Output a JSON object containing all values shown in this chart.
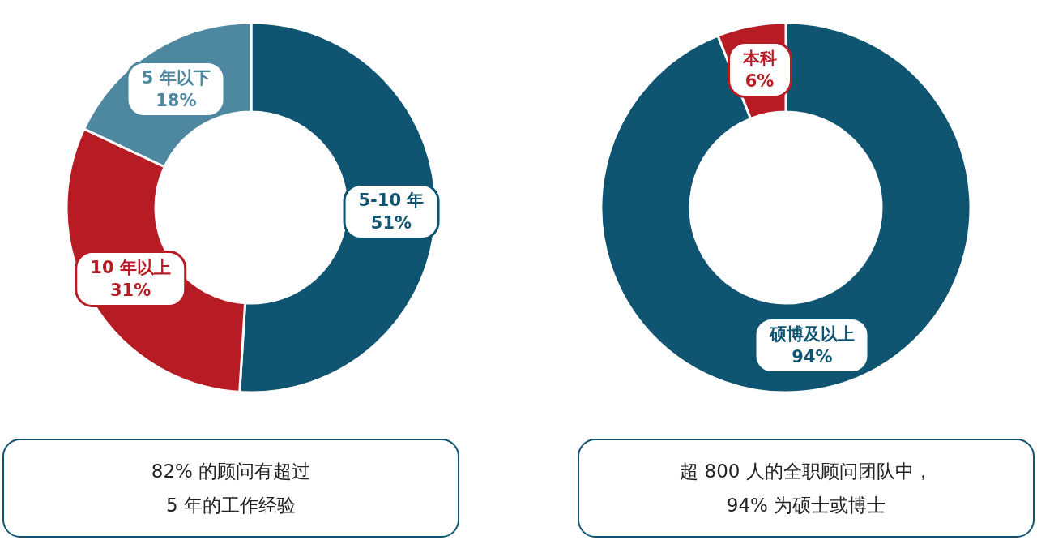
{
  "chart_data": [
    {
      "type": "donut",
      "categories": [
        "5-10 年",
        "10 年以上",
        "5 年以下"
      ],
      "values": [
        51,
        31,
        18
      ],
      "value_labels": [
        "51%",
        "31%",
        "18%"
      ],
      "colors": [
        "#0f5470",
        "#b71c24",
        "#4e87a0"
      ],
      "legend": false,
      "annotations": [
        "82% 的顾问有超过\n5 年的工作经验"
      ]
    },
    {
      "type": "donut",
      "categories": [
        "硕博及以上",
        "本科"
      ],
      "values": [
        94,
        6
      ],
      "value_labels": [
        "94%",
        "6%"
      ],
      "colors": [
        "#0f5470",
        "#b71c24"
      ],
      "legend": false,
      "annotations": [
        "超 800 人的全职顾问团队中，\n94% 为硕士或博士"
      ]
    }
  ]
}
